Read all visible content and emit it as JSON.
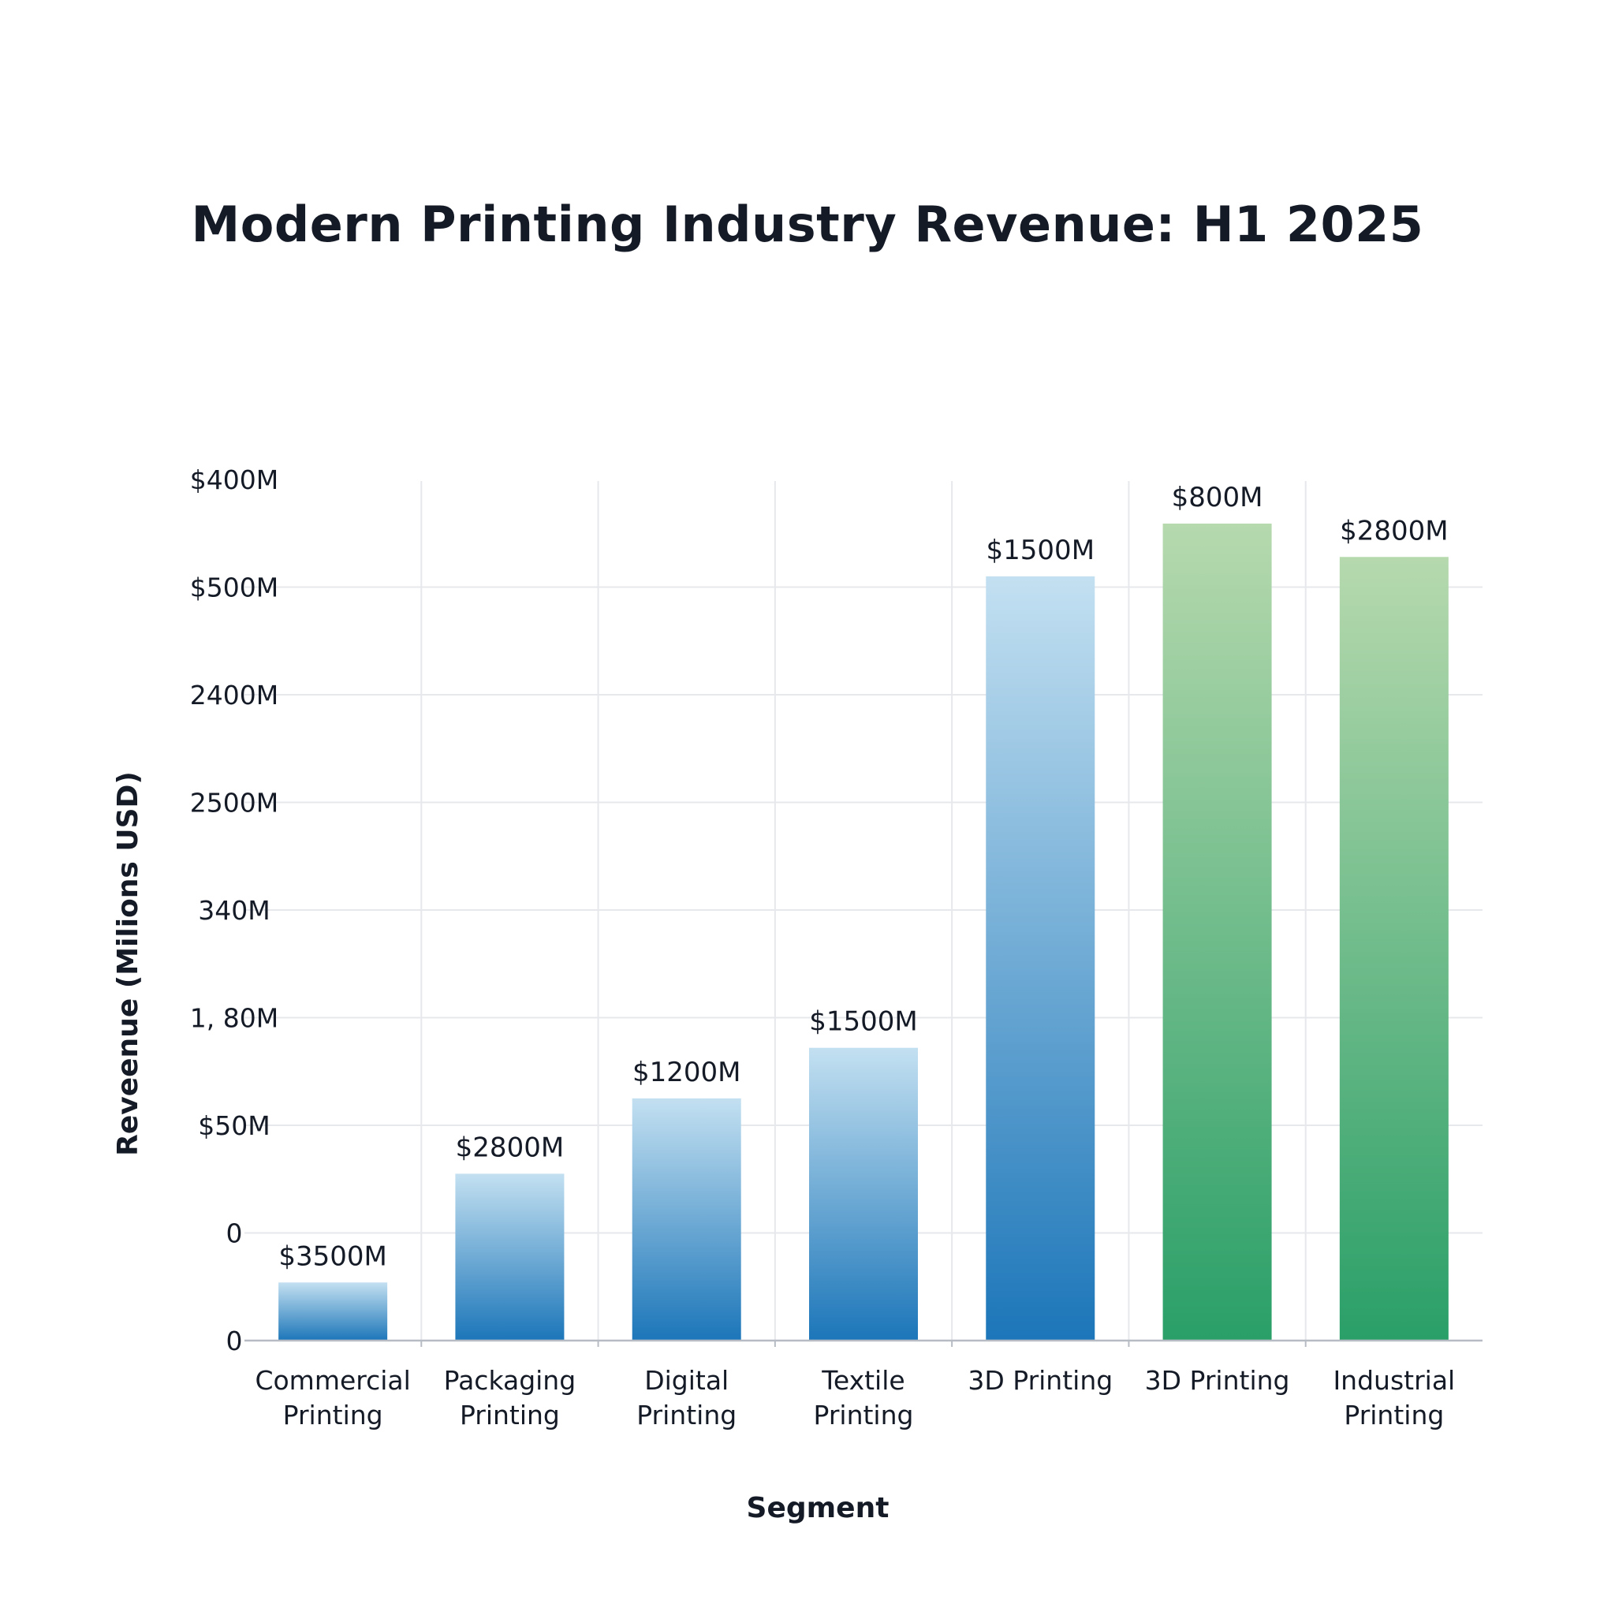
{
  "chart_data": {
    "type": "bar",
    "title": "Modern Printing Industry Revenue: H1 2025",
    "xlabel": "Segment",
    "ylabel": "Reveenue (Milions USD)",
    "y_tick_labels": [
      "0",
      "0",
      "$50M",
      "1, 80M",
      "340M",
      "2500M",
      "2400M",
      "$500M",
      "$400M"
    ],
    "categories": [
      [
        "Commercial",
        "Printing"
      ],
      [
        "Packaging",
        "Printing"
      ],
      [
        "Digital",
        "Printing"
      ],
      [
        "Textile",
        "Printing"
      ],
      [
        "3D Printing"
      ],
      [
        "3D Printing"
      ],
      [
        "Industrial",
        "Printing"
      ]
    ],
    "values": [
      0.54,
      1.55,
      2.25,
      2.72,
      7.1,
      7.59,
      7.28
    ],
    "value_unit": "gridline intervals above baseline (tick labels are non-numeric)",
    "data_labels": [
      "$3500M",
      "$2800M",
      "$1200M",
      "$1500M",
      "$1500M",
      "$800M",
      "$2800M"
    ],
    "colors": [
      "blue",
      "blue",
      "blue",
      "blue",
      "blue",
      "green",
      "green"
    ],
    "palette": {
      "blue_top": "#c3e0f1",
      "blue_bottom": "#1c76b9",
      "green_top": "#b6d9ae",
      "green_bottom": "#2a9f68",
      "grid": "#e6e8ec",
      "axis": "#b7bcc4",
      "text": "#141a26"
    },
    "ylim": [
      0,
      8
    ],
    "grid": true,
    "legend": "none"
  }
}
